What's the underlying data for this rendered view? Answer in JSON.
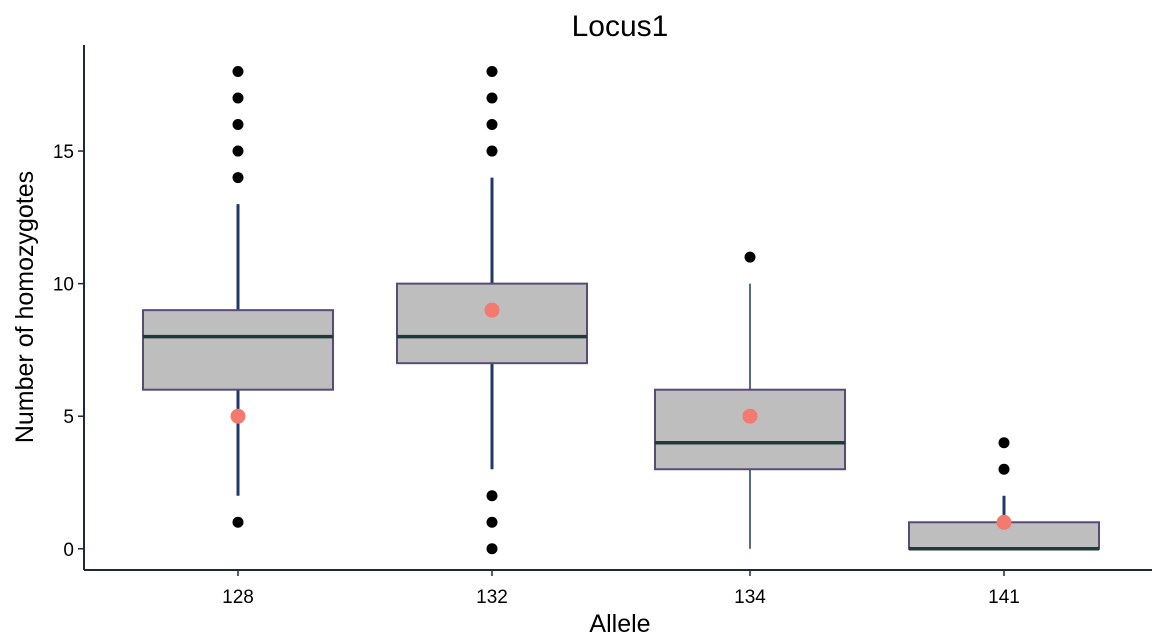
{
  "chart_data": {
    "type": "boxplot",
    "title": "Locus1",
    "xlabel": "Allele",
    "ylabel": "Number of homozygotes",
    "categories": [
      "128",
      "132",
      "134",
      "141"
    ],
    "ylim": [
      -0.8,
      19
    ],
    "yticks": [
      0,
      5,
      10,
      15
    ],
    "boxes": [
      {
        "category": "128",
        "q1": 6,
        "median": 8,
        "q3": 9,
        "whisker_low": 2,
        "whisker_high": 13,
        "outliers": [
          1,
          14,
          15,
          16,
          17,
          18
        ],
        "mean": 5
      },
      {
        "category": "132",
        "q1": 7,
        "median": 8,
        "q3": 10,
        "whisker_low": 3,
        "whisker_high": 14,
        "outliers": [
          0,
          1,
          2,
          15,
          16,
          17,
          18
        ],
        "mean": 9
      },
      {
        "category": "134",
        "q1": 3,
        "median": 4,
        "q3": 6,
        "whisker_low": 0,
        "whisker_high": 10,
        "outliers": [
          11
        ],
        "mean": 5
      },
      {
        "category": "141",
        "q1": 0,
        "median": 0,
        "q3": 1,
        "whisker_low": 0,
        "whisker_high": 2,
        "outliers": [
          3,
          4
        ],
        "mean": 1
      }
    ],
    "grid": false,
    "colors": {
      "box_fill": "#bebebe",
      "box_border": "#5a4a7a",
      "median": "#1f3a3a",
      "whisker": "#1f3a66",
      "outlier": "#000000",
      "mean": "#f4796f",
      "axis": "#1a2a3a"
    }
  }
}
